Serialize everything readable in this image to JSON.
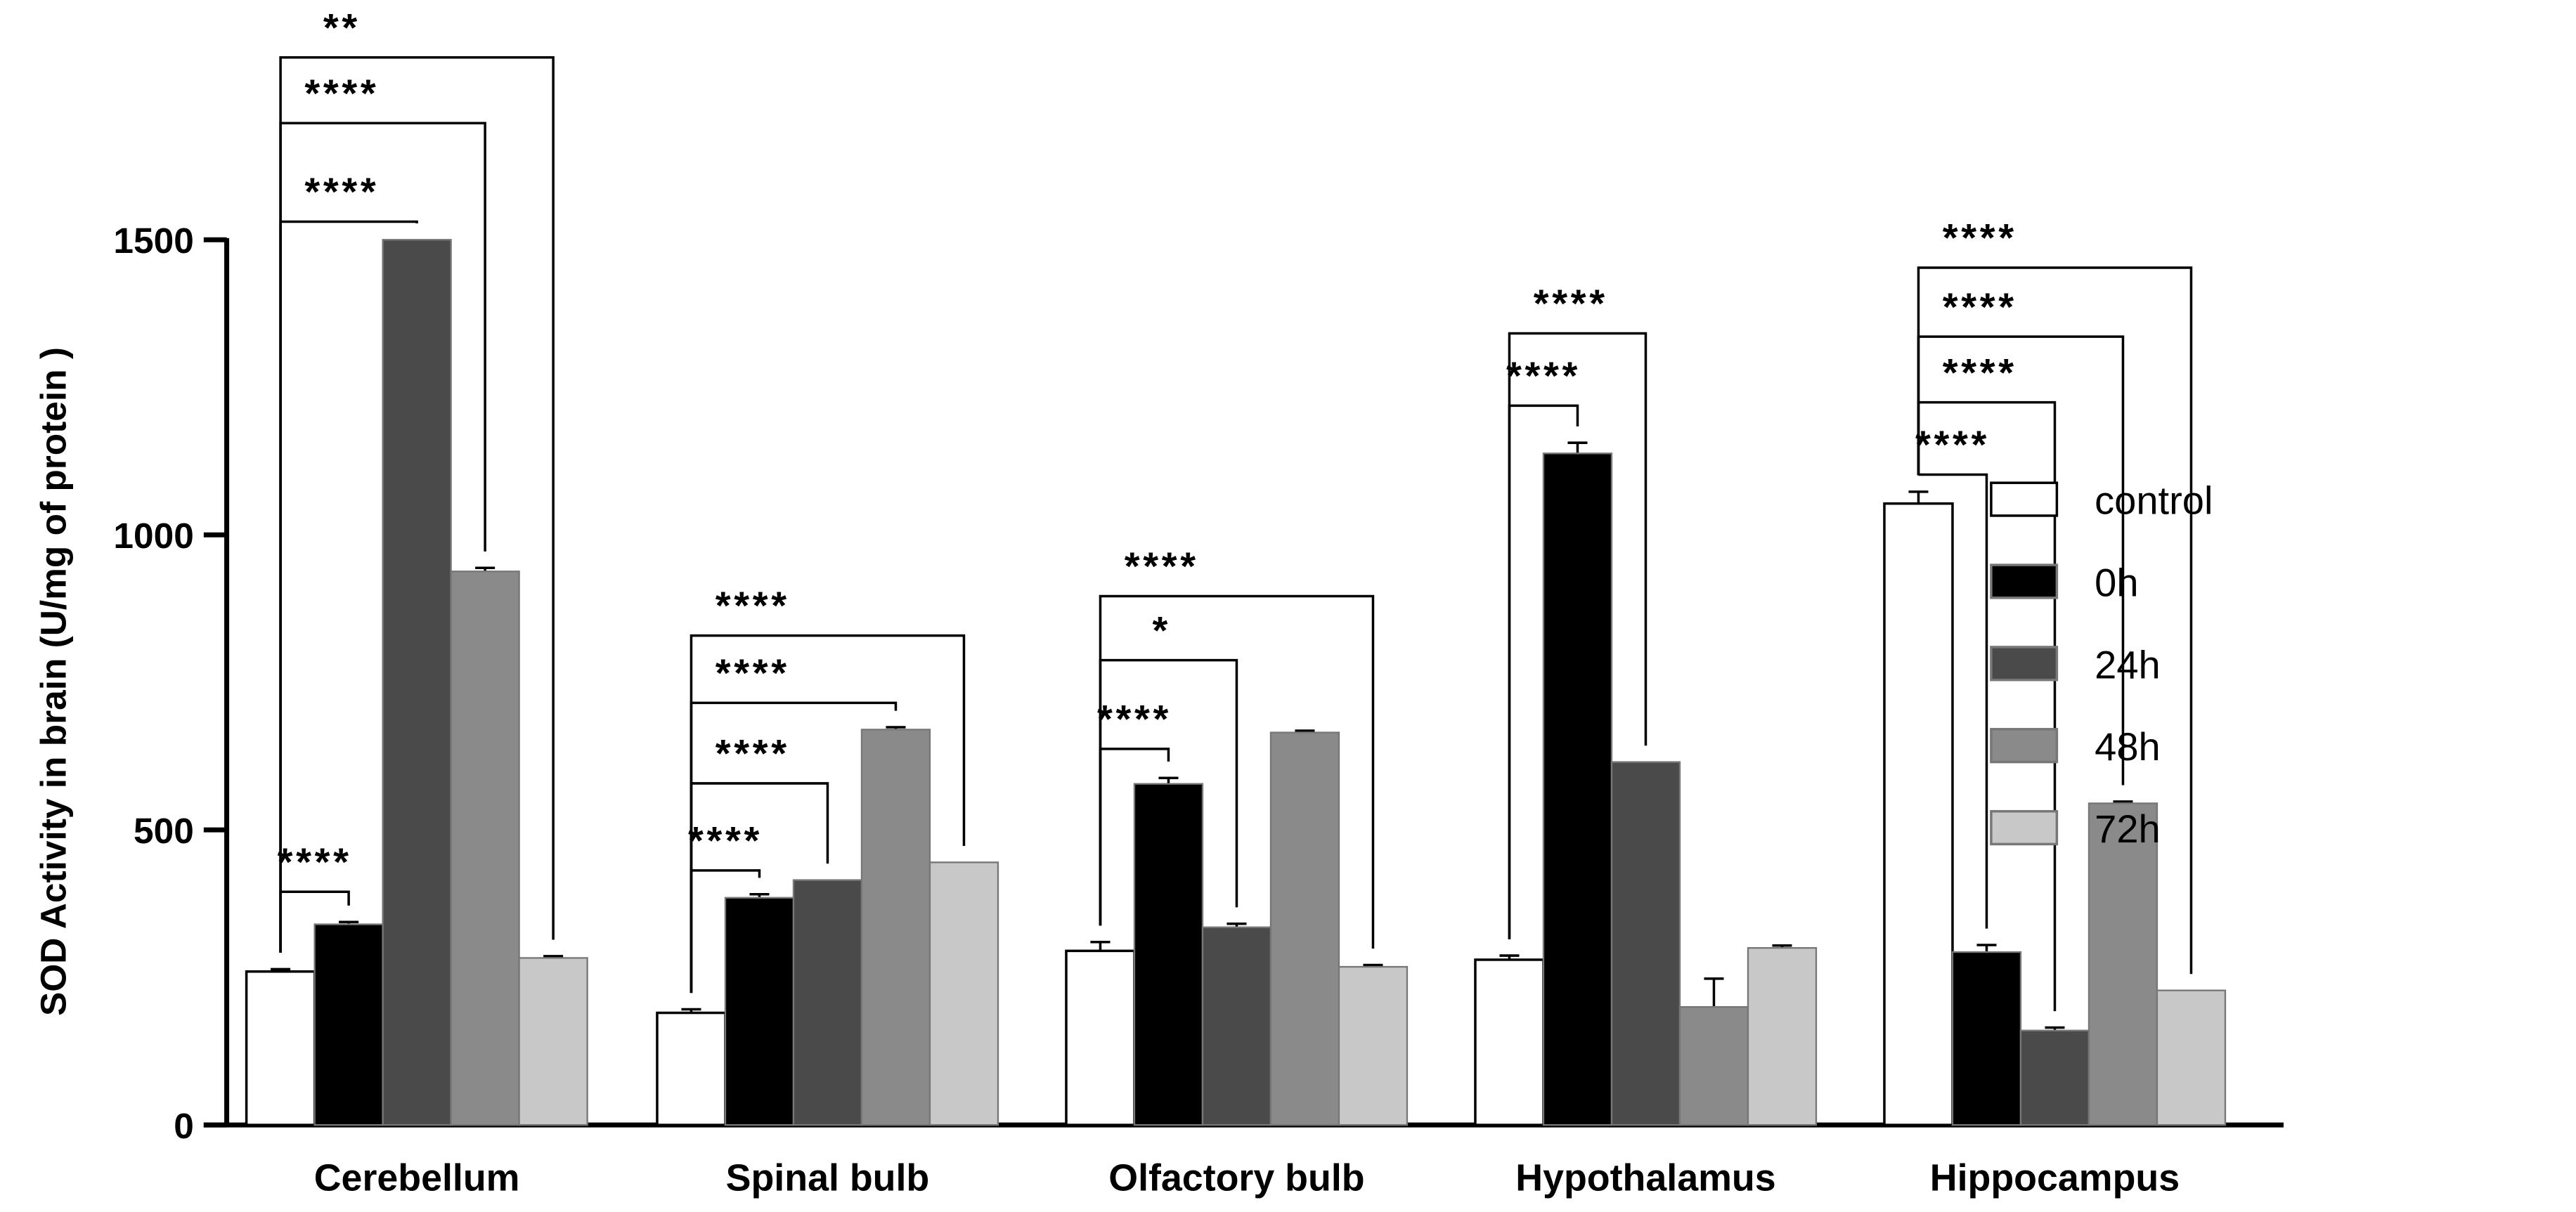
{
  "chart_data": {
    "type": "bar",
    "title": "",
    "xlabel": "",
    "ylabel": "SOD Activity in brain (U/mg of protein )",
    "ylim": [
      0,
      1500
    ],
    "yticks": [
      "0",
      "500",
      "1000",
      "1500"
    ],
    "categories": [
      "Cerebellum",
      "Spinal bulb",
      "Olfactory bulb",
      "Hypothalamus",
      "Hippocampus"
    ],
    "legend_position": "right",
    "grid": false,
    "series": [
      {
        "name": "control",
        "color": "#ffffff",
        "values": [
          260,
          190,
          295,
          280,
          1053
        ],
        "errors": [
          4,
          6,
          15,
          7,
          20
        ]
      },
      {
        "name": "0h",
        "color": "#000000",
        "values": [
          340,
          385,
          578,
          1138,
          293
        ],
        "errors": [
          4,
          6,
          10,
          18,
          12
        ]
      },
      {
        "name": "24h",
        "color": "#4a4a4a",
        "values": [
          1500,
          415,
          335,
          615,
          160
        ],
        "errors": [
          0,
          0,
          6,
          0,
          5
        ]
      },
      {
        "name": "48h",
        "color": "#8a8a8a",
        "values": [
          938,
          670,
          665,
          200,
          545
        ],
        "errors": [
          6,
          4,
          3,
          48,
          3
        ]
      },
      {
        "name": "72h",
        "color": "#c8c8c8",
        "values": [
          283,
          445,
          268,
          300,
          228
        ],
        "errors": [
          3,
          0,
          3,
          4,
          0
        ]
      }
    ],
    "significance": [
      {
        "category": 0,
        "from": 0,
        "to": 1,
        "label": "****"
      },
      {
        "category": 0,
        "from": 0,
        "to": 2,
        "label": "****"
      },
      {
        "category": 0,
        "from": 0,
        "to": 3,
        "label": "****"
      },
      {
        "category": 0,
        "from": 0,
        "to": 4,
        "label": "**"
      },
      {
        "category": 1,
        "from": 0,
        "to": 1,
        "label": "****"
      },
      {
        "category": 1,
        "from": 0,
        "to": 2,
        "label": "****"
      },
      {
        "category": 1,
        "from": 0,
        "to": 3,
        "label": "****"
      },
      {
        "category": 1,
        "from": 0,
        "to": 4,
        "label": "****"
      },
      {
        "category": 2,
        "from": 0,
        "to": 1,
        "label": "****"
      },
      {
        "category": 2,
        "from": 0,
        "to": 2,
        "label": "*"
      },
      {
        "category": 2,
        "from": 0,
        "to": 4,
        "label": "****"
      },
      {
        "category": 3,
        "from": 0,
        "to": 1,
        "label": "****"
      },
      {
        "category": 3,
        "from": 0,
        "to": 2,
        "label": "****"
      },
      {
        "category": 4,
        "from": 0,
        "to": 1,
        "label": "****"
      },
      {
        "category": 4,
        "from": 0,
        "to": 2,
        "label": "****"
      },
      {
        "category": 4,
        "from": 0,
        "to": 3,
        "label": "****"
      },
      {
        "category": 4,
        "from": 0,
        "to": 4,
        "label": "****"
      }
    ]
  }
}
